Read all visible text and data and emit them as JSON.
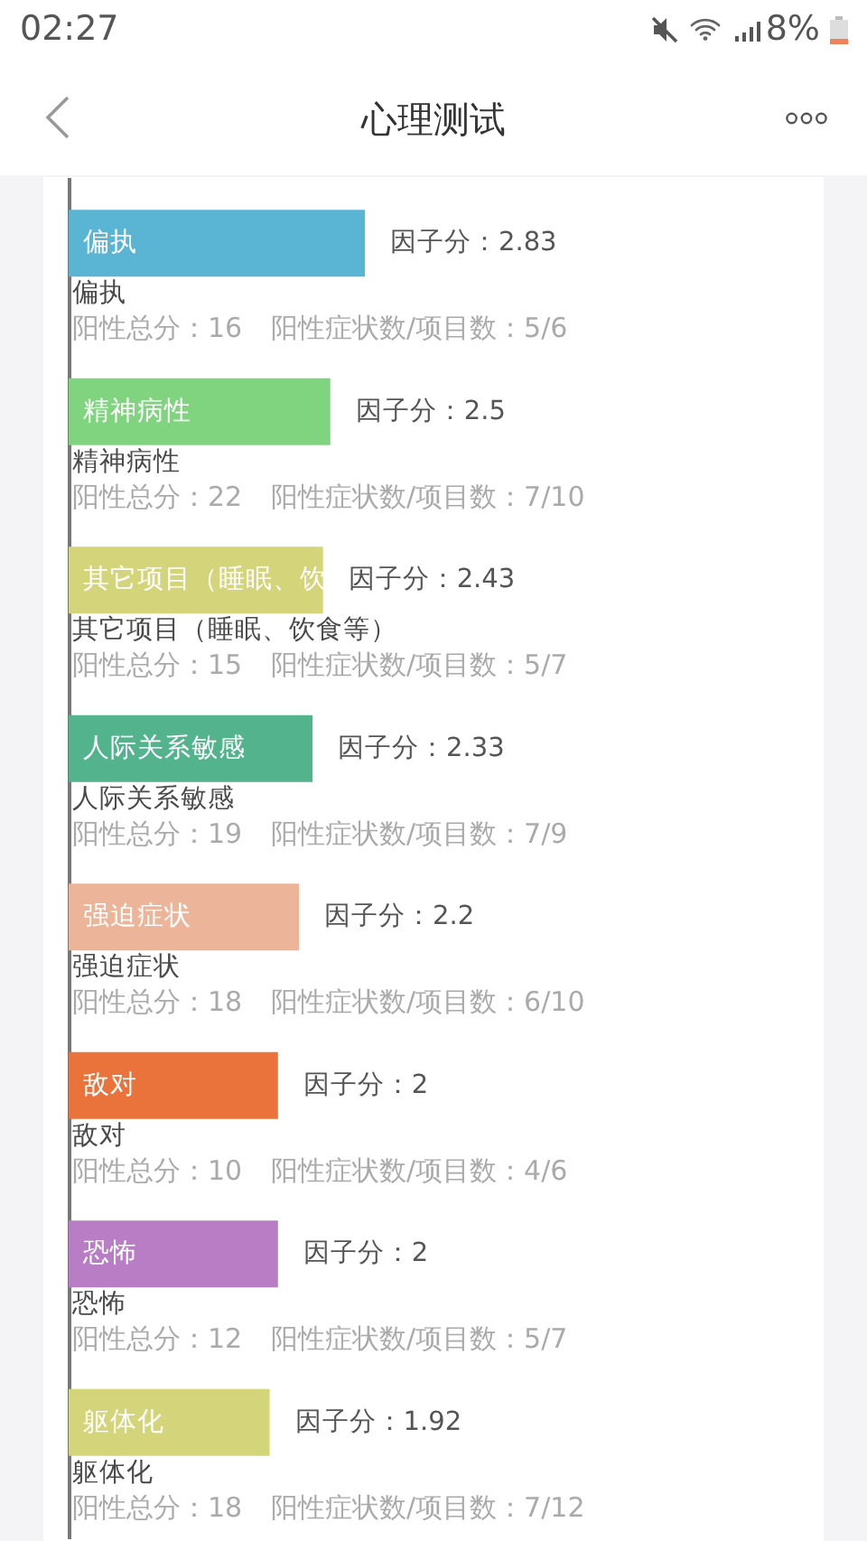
{
  "chart_data": {
    "type": "bar",
    "orientation": "horizontal",
    "title": "心理测试",
    "categories": [
      "偏执",
      "精神病性",
      "其它项目（睡眠、饮食等）",
      "人际关系敏感",
      "强迫症状",
      "敌对",
      "恐怖",
      "躯体化"
    ],
    "values": [
      2.83,
      2.5,
      2.43,
      2.33,
      2.2,
      2,
      2,
      1.92
    ],
    "colors": [
      "#5ab4d4",
      "#80d480",
      "#d4d47a",
      "#52b38c",
      "#ecb498",
      "#ea733b",
      "#b97dc6",
      "#d4d47a"
    ],
    "value_labels": [
      "因子分：2.83",
      "因子分：2.5",
      "因子分：2.43",
      "因子分：2.33",
      "因子分：2.2",
      "因子分：2",
      "因子分：2",
      "因子分：1.92"
    ],
    "annotations": [
      "02:27",
      "8%",
      "偏执",
      "阳性总分：16",
      "阳性症状数/项目数：5/6",
      "精神病性",
      "阳性总分：22",
      "阳性症状数/项目数：7/10",
      "其它项目（睡眠、饮",
      "阳性总分：15",
      "阳性症状数/项目数：5/7",
      "人际关系敏感",
      "阳性总分：19",
      "阳性症状数/项目数：7/9",
      "强迫症状",
      "阳性总分：18",
      "阳性症状数/项目数：6/10",
      "敌对",
      "阳性总分：10",
      "阳性症状数/项目数：4/6",
      "恐怖",
      "阳性总分：12",
      "阳性症状数/项目数：5/7",
      "躯体化",
      "阳性总分：18",
      "阳性症状数/项目数：7/12"
    ]
  }
}
